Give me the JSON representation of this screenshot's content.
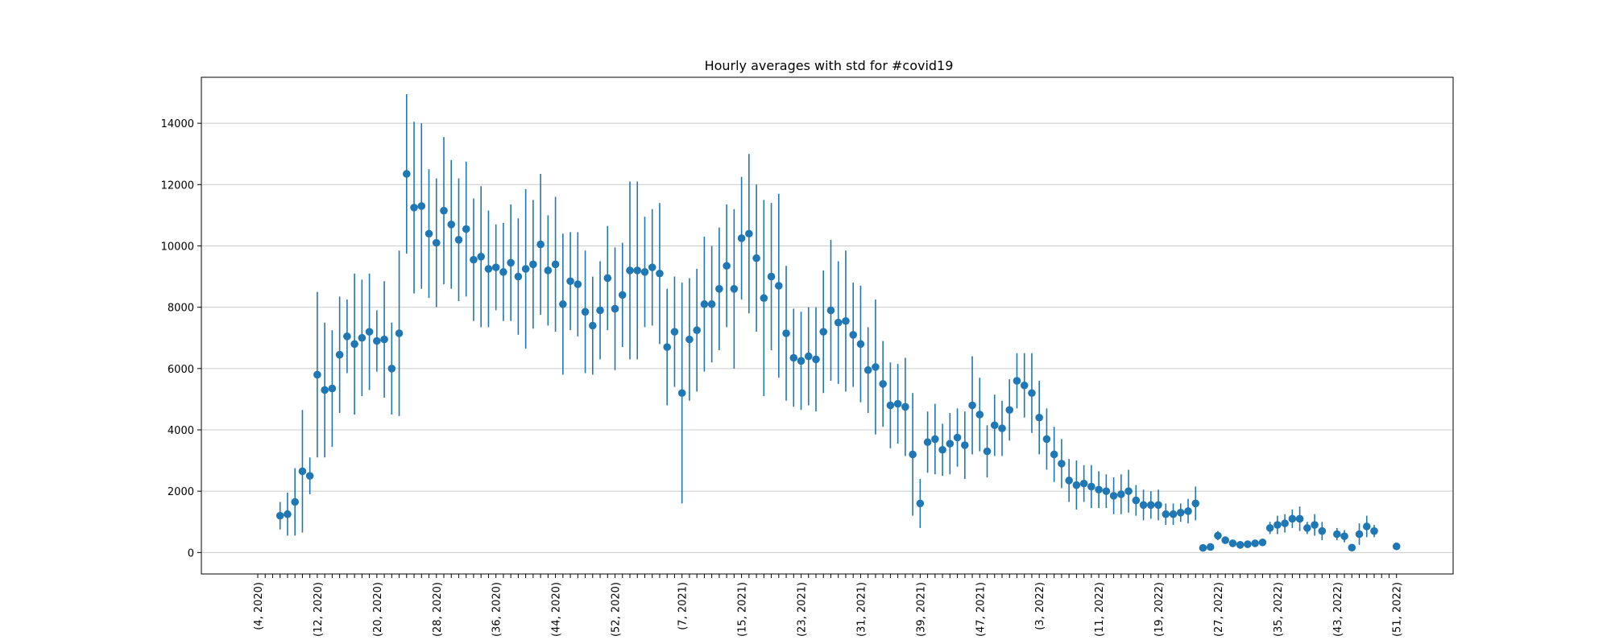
{
  "chart_data": {
    "type": "scatter",
    "title": "Hourly averages with std for #covid19",
    "xlabel": "",
    "ylabel": "",
    "ylim": [
      -700,
      15500
    ],
    "y_ticks": [
      0,
      2000,
      4000,
      6000,
      8000,
      10000,
      12000,
      14000
    ],
    "grid": "y",
    "x_tick_labels": [
      "(4, 2020)",
      "(12, 2020)",
      "(20, 2020)",
      "(28, 2020)",
      "(36, 2020)",
      "(44, 2020)",
      "(52, 2020)",
      "(7, 2021)",
      "(15, 2021)",
      "(23, 2021)",
      "(31, 2021)",
      "(39, 2021)",
      "(47, 2021)",
      "(3, 2022)",
      "(11, 2022)",
      "(19, 2022)",
      "(27, 2022)",
      "(35, 2022)",
      "(43, 2022)",
      "(51, 2022)"
    ],
    "x_label_index": [
      0,
      8,
      16,
      24,
      32,
      40,
      48,
      57,
      65,
      73,
      81,
      89,
      97,
      105,
      113,
      121,
      129,
      137,
      145,
      153
    ],
    "x_minor_tick_count": 154,
    "color": "#1f77b4",
    "series": [
      {
        "x": [
          3,
          4,
          5,
          6,
          7,
          8,
          9,
          10,
          11,
          12,
          13,
          14,
          15,
          16,
          17,
          18,
          19,
          20,
          21,
          22,
          23,
          24,
          25,
          26,
          27,
          28,
          29,
          30,
          31,
          32,
          33,
          34,
          35,
          36,
          37,
          38,
          39,
          40,
          41,
          42,
          43,
          44,
          45,
          46,
          47,
          48,
          49,
          50,
          51,
          52,
          53,
          54,
          55,
          56,
          57,
          58,
          59,
          60,
          61,
          62,
          63,
          64,
          65,
          66,
          67,
          68,
          69,
          70,
          71,
          72,
          73,
          74,
          75,
          76,
          77,
          78,
          79,
          80,
          81,
          82,
          83,
          84,
          85,
          86,
          87,
          88,
          89,
          90,
          91,
          92,
          93,
          94,
          95,
          96,
          97,
          98,
          99,
          100,
          101,
          102,
          103,
          104,
          105,
          106,
          107,
          108,
          109,
          110,
          111,
          112,
          113,
          114,
          115,
          116,
          117,
          118,
          119,
          120,
          121,
          122,
          123,
          124,
          125,
          126,
          127,
          128,
          129,
          130,
          131,
          132,
          133,
          134,
          135,
          136,
          137,
          138,
          139,
          140,
          141,
          142,
          143,
          144,
          145,
          146,
          147,
          148,
          149,
          150,
          151,
          152,
          153
        ],
        "y": [
          1200,
          1250,
          1650,
          2650,
          2500,
          5800,
          5300,
          5350,
          6450,
          7050,
          6800,
          7000,
          7200,
          6900,
          6950,
          6000,
          7150,
          12350,
          11250,
          11300,
          10400,
          10100,
          11150,
          10700,
          10200,
          10550,
          9550,
          9650,
          9250,
          9300,
          9150,
          9450,
          9000,
          9250,
          9400,
          10050,
          9200,
          9400,
          8100,
          8850,
          8750,
          7850,
          7400,
          7900,
          8950,
          7950,
          8400,
          9200,
          9200,
          9150,
          9300,
          9100,
          6700,
          7200,
          5200,
          6950,
          7250,
          8100,
          8100,
          8600,
          9350,
          8600,
          10250,
          10400,
          9600,
          8300,
          9000,
          8700,
          7150,
          6350,
          6250,
          6400,
          6300,
          7200,
          7900,
          7500,
          7550,
          7100,
          6800,
          5950,
          6050,
          5500,
          4800,
          4850,
          4750,
          3200,
          1600,
          3600,
          3700,
          3350,
          3550,
          3750,
          3500,
          4800,
          4500,
          3300,
          4150,
          4050,
          4650,
          5600,
          5450,
          5200,
          4400,
          3700,
          3200,
          2900,
          2350,
          2200,
          2250,
          2150,
          2050,
          2000,
          1850,
          1900,
          2000,
          1700,
          1550,
          1550,
          1550,
          1250,
          1250,
          1300,
          1350,
          1600,
          150,
          180,
          550,
          400,
          300,
          250,
          270,
          300,
          330,
          800,
          900,
          950,
          1100,
          1100,
          800,
          900,
          700,
          null,
          600,
          530,
          160,
          600,
          850,
          700,
          null,
          null,
          200
        ],
        "err": [
          450,
          700,
          1100,
          2000,
          600,
          2700,
          2200,
          1900,
          1900,
          1200,
          2300,
          1900,
          1900,
          1000,
          1900,
          1500,
          2700,
          2600,
          2800,
          2700,
          2100,
          2100,
          2400,
          2100,
          2000,
          2200,
          2000,
          2300,
          1900,
          1400,
          1600,
          1900,
          1900,
          2600,
          2100,
          2300,
          1800,
          2200,
          2300,
          1600,
          1700,
          2000,
          1600,
          1600,
          1700,
          2000,
          1700,
          2900,
          2900,
          1800,
          1900,
          2300,
          1900,
          1800,
          3600,
          2000,
          2000,
          2200,
          1900,
          2000,
          2000,
          2600,
          2000,
          2600,
          2400,
          3200,
          2400,
          3000,
          2200,
          1600,
          1600,
          1600,
          1700,
          2000,
          2300,
          2000,
          2300,
          1700,
          1900,
          1400,
          2200,
          1400,
          1400,
          1300,
          1600,
          2000,
          800,
          1000,
          1150,
          850,
          1000,
          950,
          1100,
          1600,
          1200,
          850,
          1000,
          900,
          1000,
          900,
          1050,
          1300,
          1200,
          1000,
          900,
          800,
          700,
          800,
          600,
          700,
          600,
          550,
          600,
          650,
          700,
          500,
          500,
          450,
          500,
          350,
          350,
          300,
          400,
          550,
          50,
          50,
          150,
          100,
          60,
          50,
          40,
          60,
          70,
          200,
          300,
          300,
          300,
          400,
          200,
          350,
          300,
          null,
          200,
          200,
          60,
          350,
          350,
          200,
          null,
          null,
          20
        ]
      }
    ]
  }
}
